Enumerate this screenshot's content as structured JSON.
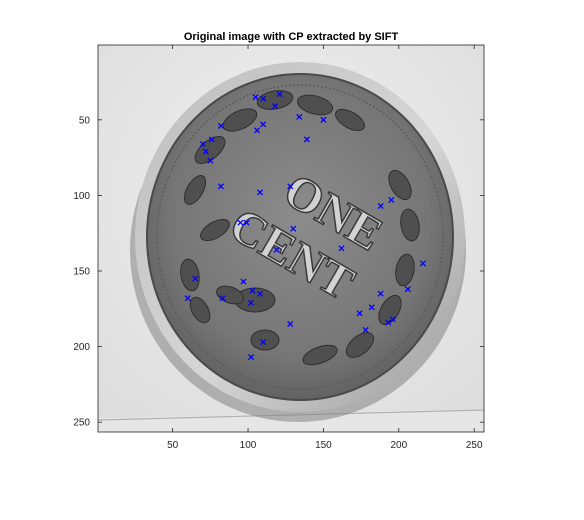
{
  "chart_data": {
    "type": "scatter",
    "title": "Original image with CP extracted by SIFT",
    "xlabel": "",
    "ylabel": "",
    "xlim": [
      0.5,
      256.5
    ],
    "ylim": [
      0.5,
      256.5
    ],
    "y_reversed": true,
    "grid": false,
    "x_ticks": [
      50,
      100,
      150,
      200,
      250
    ],
    "y_ticks": [
      50,
      100,
      150,
      200,
      250
    ],
    "x_tick_labels": [
      "50",
      "100",
      "150",
      "200",
      "250"
    ],
    "y_tick_labels": [
      "50",
      "100",
      "150",
      "200",
      "250"
    ],
    "background_image": "grayscale photograph of a One Cent coin with wreath",
    "marker": "x",
    "marker_color": "#0000ff",
    "points": [
      {
        "x": 105,
        "y": 35
      },
      {
        "x": 110,
        "y": 36
      },
      {
        "x": 121,
        "y": 33
      },
      {
        "x": 118,
        "y": 41
      },
      {
        "x": 134,
        "y": 48
      },
      {
        "x": 150,
        "y": 50
      },
      {
        "x": 139,
        "y": 63
      },
      {
        "x": 106,
        "y": 57
      },
      {
        "x": 110,
        "y": 53
      },
      {
        "x": 82,
        "y": 54
      },
      {
        "x": 76,
        "y": 63
      },
      {
        "x": 70,
        "y": 66
      },
      {
        "x": 72,
        "y": 71
      },
      {
        "x": 75,
        "y": 77
      },
      {
        "x": 82,
        "y": 94
      },
      {
        "x": 128,
        "y": 94
      },
      {
        "x": 108,
        "y": 98
      },
      {
        "x": 95,
        "y": 118
      },
      {
        "x": 99,
        "y": 118
      },
      {
        "x": 130,
        "y": 122
      },
      {
        "x": 119,
        "y": 136
      },
      {
        "x": 162,
        "y": 135
      },
      {
        "x": 188,
        "y": 107
      },
      {
        "x": 195,
        "y": 103
      },
      {
        "x": 216,
        "y": 145
      },
      {
        "x": 206,
        "y": 162
      },
      {
        "x": 188,
        "y": 165
      },
      {
        "x": 182,
        "y": 174
      },
      {
        "x": 174,
        "y": 178
      },
      {
        "x": 196,
        "y": 182
      },
      {
        "x": 193,
        "y": 184
      },
      {
        "x": 178,
        "y": 189
      },
      {
        "x": 65,
        "y": 155
      },
      {
        "x": 97,
        "y": 157
      },
      {
        "x": 103,
        "y": 163
      },
      {
        "x": 108,
        "y": 165
      },
      {
        "x": 60,
        "y": 168
      },
      {
        "x": 83,
        "y": 168
      },
      {
        "x": 102,
        "y": 171
      },
      {
        "x": 128,
        "y": 185
      },
      {
        "x": 110,
        "y": 197
      },
      {
        "x": 102,
        "y": 207
      }
    ]
  }
}
